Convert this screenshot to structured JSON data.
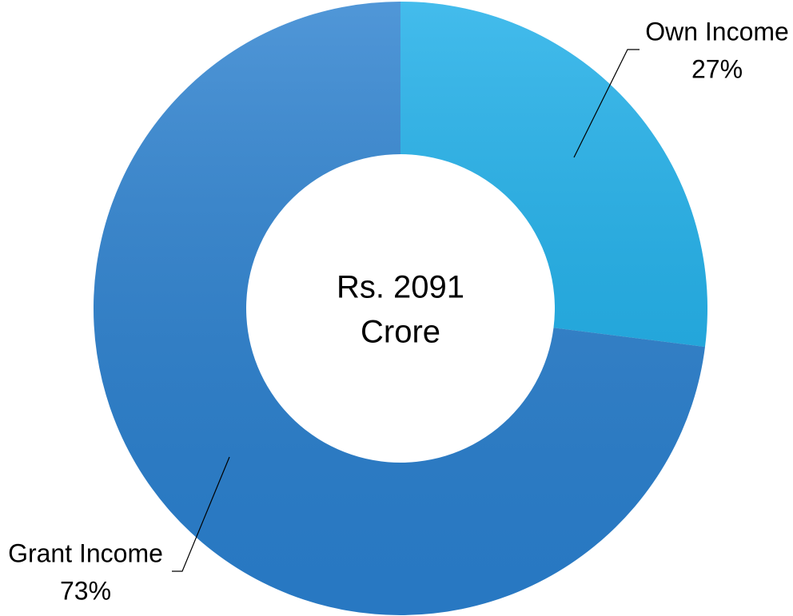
{
  "chart_data": {
    "type": "donut",
    "center_text": [
      "Rs. 2091",
      "Crore"
    ],
    "categories": [
      "Own Income",
      "Grant Income"
    ],
    "values": [
      27,
      73
    ],
    "value_labels": [
      "27%",
      "73%"
    ],
    "colors": [
      "#1aade8",
      "#2a80cf"
    ]
  }
}
